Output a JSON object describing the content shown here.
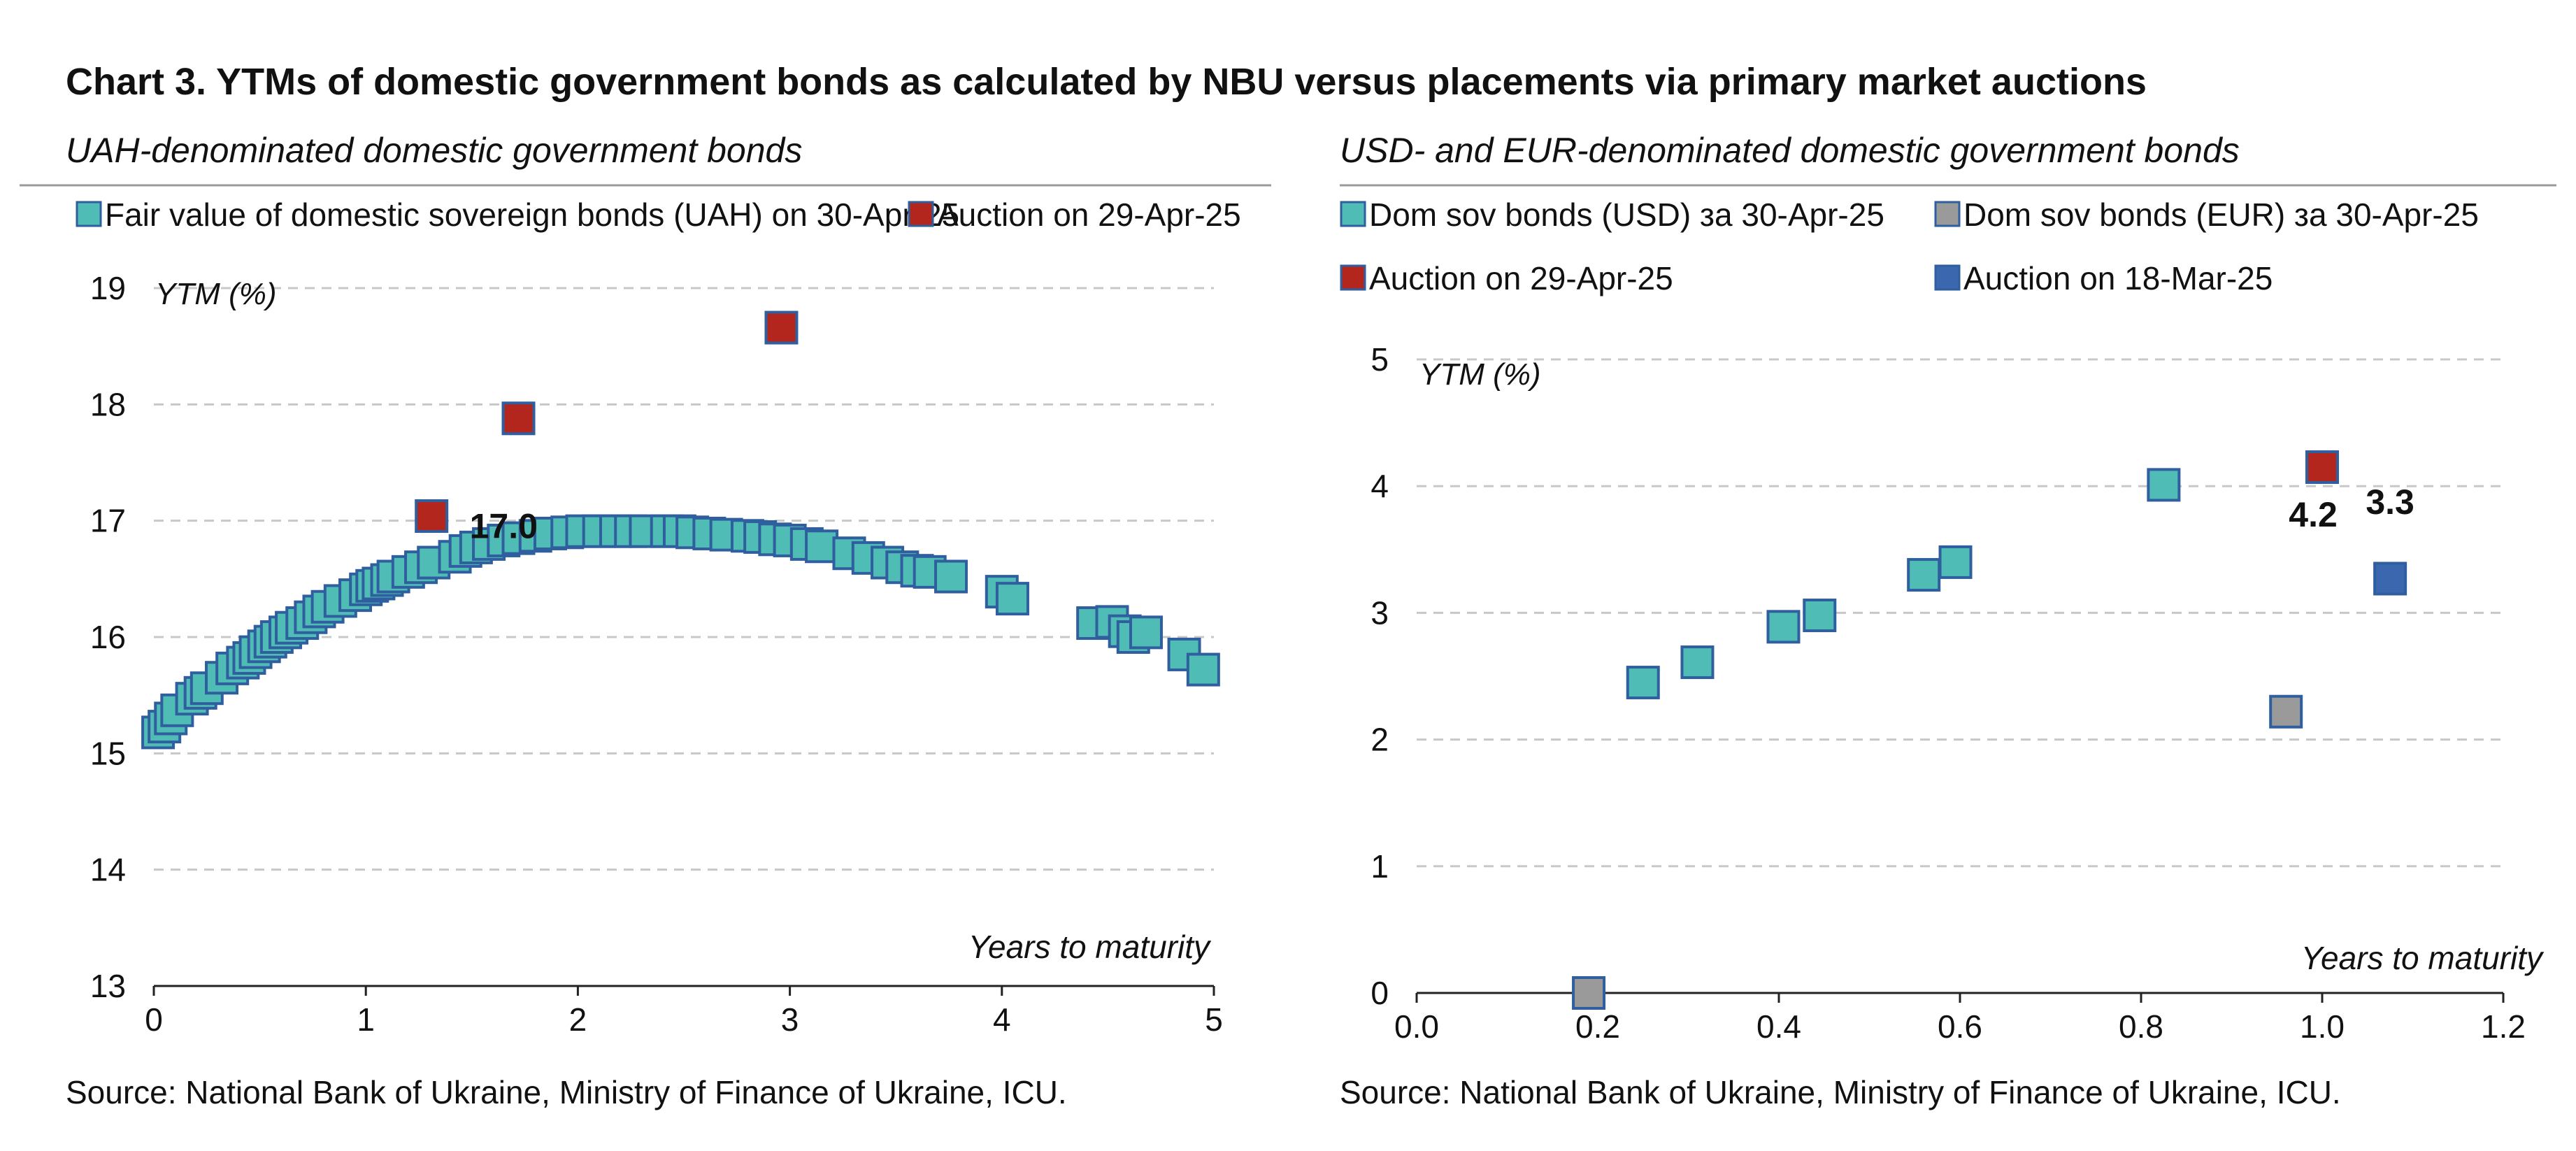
{
  "header": {
    "title": "Chart 3. YTMs of domestic government bonds as calculated by NBU versus placements via primary market auctions"
  },
  "colors": {
    "teal": "#4fbdb5",
    "teal_border": "#2f5f9e",
    "red": "#b3261e",
    "gray": "#9a9a9a",
    "blue": "#3a67ad",
    "grid": "#c8c8c8"
  },
  "left_panel": {
    "subtitle": "UAH-denominated domestic government bonds",
    "source": "Source: National Bank of Ukraine, Ministry of Finance of Ukraine, ICU."
  },
  "right_panel": {
    "subtitle": "USD- and EUR-denominated domestic government bonds",
    "source": "Source: National Bank of Ukraine, Ministry of Finance of Ukraine, ICU."
  },
  "chart_data": [
    {
      "type": "scatter",
      "xlabel": "Years to maturity",
      "ylabel": "YTM (%)",
      "xlim": [
        0,
        5
      ],
      "ylim": [
        13,
        19
      ],
      "xticks": [
        "0",
        "1",
        "2",
        "3",
        "4",
        "5"
      ],
      "yticks": [
        "13",
        "14",
        "15",
        "16",
        "17",
        "18",
        "19"
      ],
      "grid": "horizontal-dashed",
      "legend_position": "top",
      "series": [
        {
          "name": "Fair value of domestic sovereign bonds (UAH) on 30-Apr-25",
          "color": "#4fbdb5",
          "points": [
            [
              0.02,
              15.18
            ],
            [
              0.05,
              15.23
            ],
            [
              0.08,
              15.3
            ],
            [
              0.11,
              15.37
            ],
            [
              0.18,
              15.47
            ],
            [
              0.22,
              15.52
            ],
            [
              0.25,
              15.56
            ],
            [
              0.32,
              15.65
            ],
            [
              0.37,
              15.73
            ],
            [
              0.42,
              15.78
            ],
            [
              0.45,
              15.82
            ],
            [
              0.48,
              15.87
            ],
            [
              0.52,
              15.92
            ],
            [
              0.55,
              15.96
            ],
            [
              0.58,
              16.0
            ],
            [
              0.62,
              16.04
            ],
            [
              0.65,
              16.08
            ],
            [
              0.7,
              16.12
            ],
            [
              0.74,
              16.17
            ],
            [
              0.78,
              16.22
            ],
            [
              0.82,
              16.26
            ],
            [
              0.88,
              16.31
            ],
            [
              0.95,
              16.36
            ],
            [
              1.0,
              16.41
            ],
            [
              1.03,
              16.44
            ],
            [
              1.06,
              16.46
            ],
            [
              1.1,
              16.49
            ],
            [
              1.13,
              16.52
            ],
            [
              1.2,
              16.56
            ],
            [
              1.26,
              16.6
            ],
            [
              1.32,
              16.64
            ],
            [
              1.42,
              16.69
            ],
            [
              1.47,
              16.74
            ],
            [
              1.52,
              16.77
            ],
            [
              1.58,
              16.8
            ],
            [
              1.65,
              16.83
            ],
            [
              1.72,
              16.85
            ],
            [
              1.8,
              16.87
            ],
            [
              1.87,
              16.89
            ],
            [
              1.95,
              16.9
            ],
            [
              2.02,
              16.91
            ],
            [
              2.1,
              16.91
            ],
            [
              2.18,
              16.91
            ],
            [
              2.25,
              16.91
            ],
            [
              2.32,
              16.91
            ],
            [
              2.42,
              16.91
            ],
            [
              2.48,
              16.91
            ],
            [
              2.54,
              16.9
            ],
            [
              2.62,
              16.89
            ],
            [
              2.7,
              16.88
            ],
            [
              2.8,
              16.87
            ],
            [
              2.86,
              16.86
            ],
            [
              2.93,
              16.84
            ],
            [
              3.0,
              16.83
            ],
            [
              3.08,
              16.8
            ],
            [
              3.15,
              16.78
            ],
            [
              3.28,
              16.72
            ],
            [
              3.37,
              16.68
            ],
            [
              3.46,
              16.64
            ],
            [
              3.53,
              16.6
            ],
            [
              3.6,
              16.57
            ],
            [
              3.66,
              16.56
            ],
            [
              3.76,
              16.52
            ],
            [
              4.0,
              16.39
            ],
            [
              4.05,
              16.33
            ],
            [
              4.43,
              16.12
            ],
            [
              4.52,
              16.13
            ],
            [
              4.58,
              16.05
            ],
            [
              4.62,
              16.0
            ],
            [
              4.68,
              16.04
            ],
            [
              4.86,
              15.85
            ],
            [
              4.95,
              15.72
            ]
          ]
        },
        {
          "name": "Auction on 29-Apr-25",
          "color": "#b3261e",
          "points": [
            [
              1.31,
              17.04
            ],
            [
              1.72,
              17.88
            ],
            [
              2.96,
              18.66
            ]
          ]
        }
      ],
      "annotations": [
        {
          "text": "17.0",
          "x": 1.65,
          "y": 16.85
        }
      ]
    },
    {
      "type": "scatter",
      "xlabel": "Years to maturity",
      "ylabel": "YTM (%)",
      "xlim": [
        0,
        1.2
      ],
      "ylim": [
        0,
        5
      ],
      "xticks": [
        "0.0",
        "0.2",
        "0.4",
        "0.6",
        "0.8",
        "1.0",
        "1.2"
      ],
      "yticks": [
        "0",
        "1",
        "2",
        "3",
        "4",
        "5"
      ],
      "grid": "horizontal-dashed",
      "legend_position": "top",
      "series": [
        {
          "name": "Dom sov bonds (USD) за 30-Apr-25",
          "color": "#4fbdb5",
          "points": [
            [
              0.25,
              2.45
            ],
            [
              0.31,
              2.61
            ],
            [
              0.405,
              2.89
            ],
            [
              0.445,
              2.98
            ],
            [
              0.56,
              3.3
            ],
            [
              0.595,
              3.4
            ],
            [
              0.825,
              4.01
            ]
          ]
        },
        {
          "name": "Dom sov bonds (EUR) за 30-Apr-25",
          "color": "#9a9a9a",
          "points": [
            [
              0.19,
              0.0
            ],
            [
              0.96,
              2.22
            ]
          ]
        },
        {
          "name": "Auction on 29-Apr-25",
          "color": "#b3261e",
          "points": [
            [
              1.0,
              4.15
            ]
          ]
        },
        {
          "name": "Auction on 18-Mar-25",
          "color": "#3a67ad",
          "points": [
            [
              1.075,
              3.27
            ]
          ]
        }
      ],
      "annotations": [
        {
          "text": "4.2",
          "x": 0.99,
          "y": 3.68
        },
        {
          "text": "3.3",
          "x": 1.075,
          "y": 3.78
        }
      ]
    }
  ]
}
